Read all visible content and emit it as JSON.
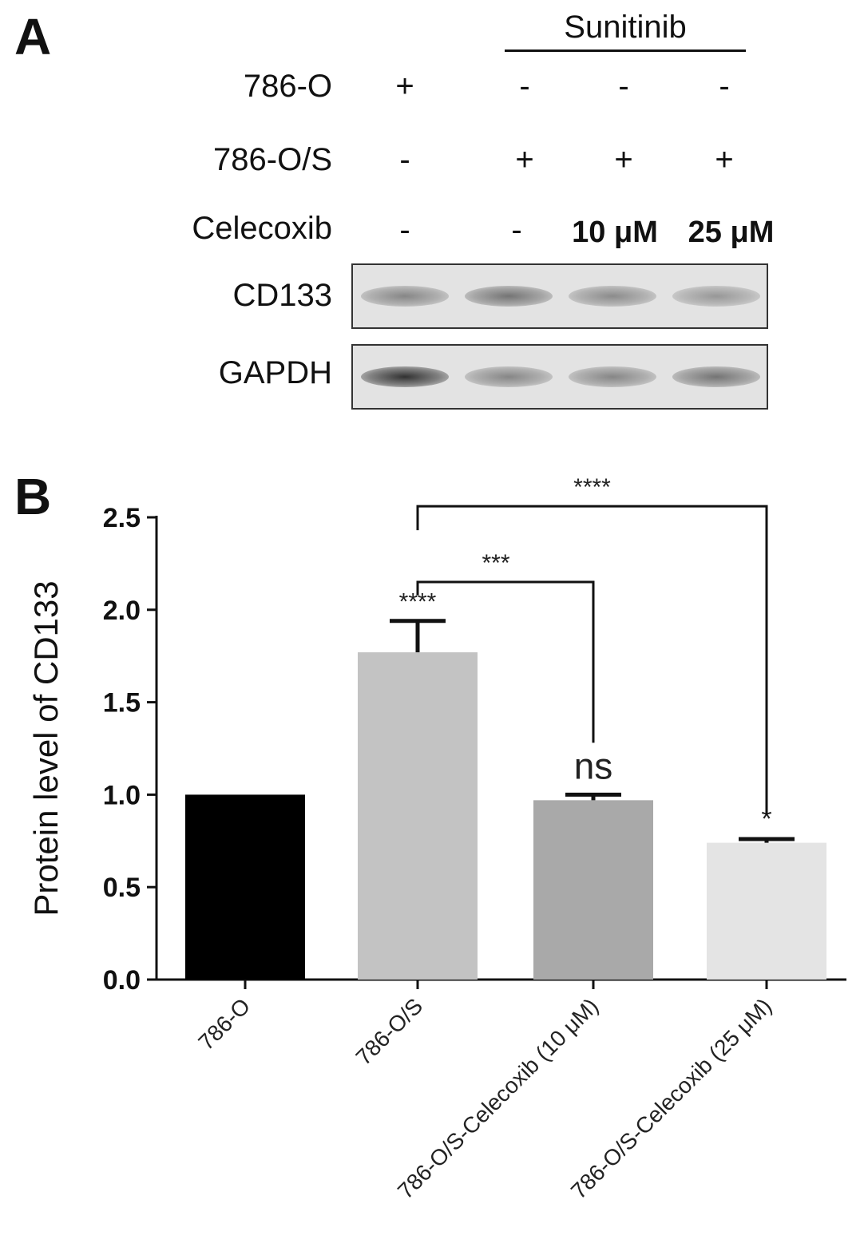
{
  "panel_a": {
    "letter": "A",
    "treatment_header": "Sunitinib",
    "rows": [
      {
        "label": "786-O",
        "values": [
          "+",
          "-",
          "-",
          "-"
        ]
      },
      {
        "label": "786-O/S",
        "values": [
          "-",
          "+",
          "+",
          "+"
        ]
      },
      {
        "label": "Celecoxib",
        "values": [
          "-",
          "-",
          "10 μM",
          "25 μM"
        ]
      }
    ],
    "blots": [
      {
        "label": "CD133",
        "band_intensity": [
          0.45,
          0.55,
          0.42,
          0.35
        ]
      },
      {
        "label": "GAPDH",
        "band_intensity": [
          0.95,
          0.45,
          0.45,
          0.55
        ]
      }
    ]
  },
  "panel_b": {
    "letter": "B"
  },
  "chart_data": {
    "type": "bar",
    "title": "",
    "xlabel": "",
    "ylabel": "Protein level of CD133",
    "ylim": [
      0,
      2.5
    ],
    "yticks": [
      "0.0",
      "0.5",
      "1.0",
      "1.5",
      "2.0",
      "2.5"
    ],
    "ytick_values": [
      0,
      0.5,
      1.0,
      1.5,
      2.0,
      2.5
    ],
    "categories": [
      "786-O",
      "786-O/S",
      "786-O/S-Celecoxib (10 μM)",
      "786-O/S-Celecoxib (25 μM)"
    ],
    "values": [
      1.0,
      1.77,
      0.97,
      0.74
    ],
    "errors": [
      0.0,
      0.17,
      0.03,
      0.02
    ],
    "colors": [
      "#000000",
      "#c3c3c3",
      "#a9a9a9",
      "#e4e4e4"
    ],
    "bar_annotations": [
      "",
      "****",
      "ns",
      "*"
    ],
    "comparisons": [
      {
        "from": 1,
        "to": 2,
        "label": "***"
      },
      {
        "from": 1,
        "to": 3,
        "label": "****"
      }
    ],
    "grid": false,
    "legend": "none"
  }
}
